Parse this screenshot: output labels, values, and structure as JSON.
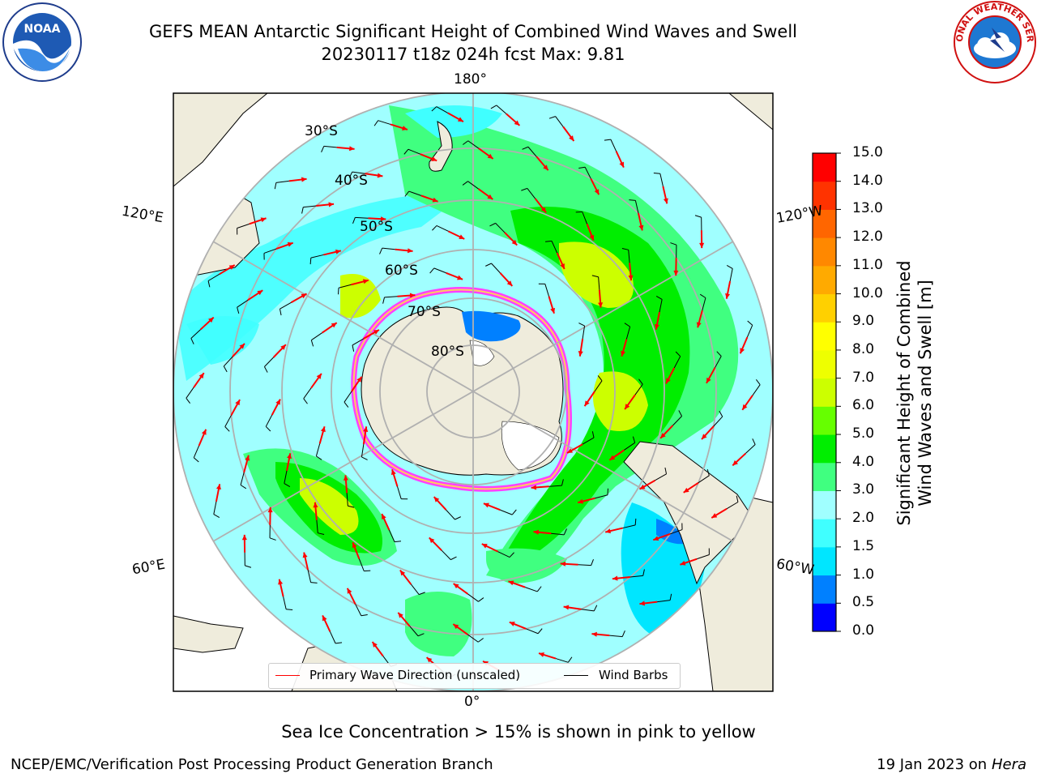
{
  "header": {
    "title_line1": "GEFS MEAN Antarctic Significant Height of Combined Wind Waves and Swell",
    "title_line2": "20230117 t18z 024h fcst   Max: 9.81"
  },
  "logos": {
    "left": "noaa-logo",
    "left_text": "NOAA",
    "right": "national-weather-service-logo",
    "right_text": "NATIONAL WEATHER SERVICE"
  },
  "map": {
    "longitude_labels": {
      "top": "180°",
      "bottom": "0°",
      "upper_left": "120°E",
      "upper_right": "120°W",
      "lower_left": "60°E",
      "lower_right": "60°W"
    },
    "latitude_labels": [
      "30°S",
      "40°S",
      "50°S",
      "60°S",
      "70°S",
      "80°S"
    ],
    "colors": {
      "land": "#efecdc",
      "ocean_missing": "#ffffff",
      "grid": "#b0b0b0",
      "arrow": "#ff0000",
      "barb": "#000000"
    }
  },
  "legend": {
    "primary_wave": "Primary Wave Direction (unscaled)",
    "wind_barbs": "Wind Barbs",
    "primary_wave_color": "#ff0000",
    "wind_barbs_color": "#000000"
  },
  "colorbar": {
    "label_line1": "Significant Height of Combined",
    "label_line2": "Wind Waves and Swell [m]",
    "ticks": [
      "0.0",
      "0.5",
      "1.0",
      "1.5",
      "2.0",
      "3.0",
      "4.0",
      "5.0",
      "6.0",
      "7.0",
      "8.0",
      "9.0",
      "10.0",
      "11.0",
      "12.0",
      "13.0",
      "14.0",
      "15.0"
    ],
    "colors": [
      "#0000ff",
      "#0080ff",
      "#00e6ff",
      "#40ffff",
      "#a0ffff",
      "#40ff80",
      "#00ee00",
      "#66ff00",
      "#ccff00",
      "#eeff00",
      "#ffff00",
      "#ffd000",
      "#ffaa00",
      "#ff8800",
      "#ff6600",
      "#ff3300",
      "#ff0000"
    ]
  },
  "note": "Sea Ice Concentration > 15% is shown in pink to yellow",
  "footer": {
    "left": "NCEP/EMC/Verification Post Processing Product Generation Branch",
    "right_prefix": "19 Jan 2023 on ",
    "right_host": "Hera"
  }
}
